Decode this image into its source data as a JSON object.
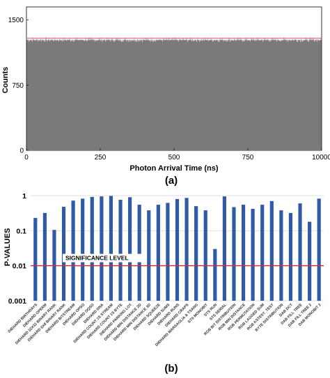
{
  "chart_data": [
    {
      "type": "bar",
      "panel_label": "(a)",
      "xlabel": "Photon Arrival Time (ns)",
      "ylabel": "Counts",
      "xlim": [
        0,
        10000
      ],
      "ylim": [
        0,
        1650
      ],
      "xticks": [
        0,
        250,
        500,
        750,
        10000
      ],
      "yticks": [
        0,
        750,
        1500
      ],
      "histogram_level": 1270,
      "reference_line": 1290,
      "colors": {
        "bars": "#7a7a7a",
        "reference_line": "#e05a6a",
        "frame": "#000000"
      }
    },
    {
      "type": "bar",
      "panel_label": "(b)",
      "ylabel": "P-VALUES",
      "yscale": "log",
      "ylim": [
        0.001,
        1
      ],
      "ytick_labels": [
        "1",
        "0.1",
        "0.01",
        "0.001"
      ],
      "yticks": [
        1,
        0.1,
        0.01,
        0.001
      ],
      "grid": true,
      "significance_level": 0.01,
      "significance_label": "SIGNIFICANCE LEVEL",
      "categories": [
        "DIEHARD BIRTHDAYS",
        "DIEHARD OPERM",
        "DIEHARD 32X32 BINARY RANK",
        "DIEHARD 6X8 BINARY RANK",
        "DIEHARD BITSTREAM",
        "DIEHARD OPSO",
        "DIEHARD OQSO",
        "DIEHARD DNA",
        "DIEHARD COUNT 1S STREAM",
        "DIEHARD COUNT 1S BYTE",
        "DIEHARD PARKING LOT",
        "DIEHARD MIN DISTANCE 2D",
        "DIEHARD MIN DISTANCE 3D",
        "DIEHARD SQUEEZE",
        "DIEHARD SUMS",
        "DIEHARD RUNS",
        "DIEHARD CRAPS",
        "DIEHARD MARSAGLIA & TSANG",
        "STS MONOBIT",
        "STS RUN",
        "STS SERIAL",
        "RGB BIT DISTRIBUTION",
        "RGB MIN DISTANCE",
        "RGB PERMUTATION",
        "RGB LAGGED SUM",
        "RGB KSTEST_TEST",
        "BYTE DISTRIBUTION",
        "DAB DCT",
        "DAB FILL TREE",
        "DAB FILL TREE 2",
        "DAB MONOBIT 2"
      ],
      "values": [
        0.23,
        0.32,
        0.105,
        0.48,
        0.72,
        0.82,
        0.92,
        0.95,
        0.98,
        0.76,
        0.9,
        0.55,
        0.38,
        0.55,
        0.62,
        0.8,
        0.86,
        0.5,
        0.38,
        0.03,
        0.95,
        0.47,
        0.55,
        0.42,
        0.55,
        0.7,
        0.38,
        0.32,
        0.6,
        0.18,
        0.82
      ],
      "colors": {
        "bars": "#2e5aa6",
        "significance_line": "#e8252a",
        "grid": "#d0d0d0"
      }
    }
  ]
}
